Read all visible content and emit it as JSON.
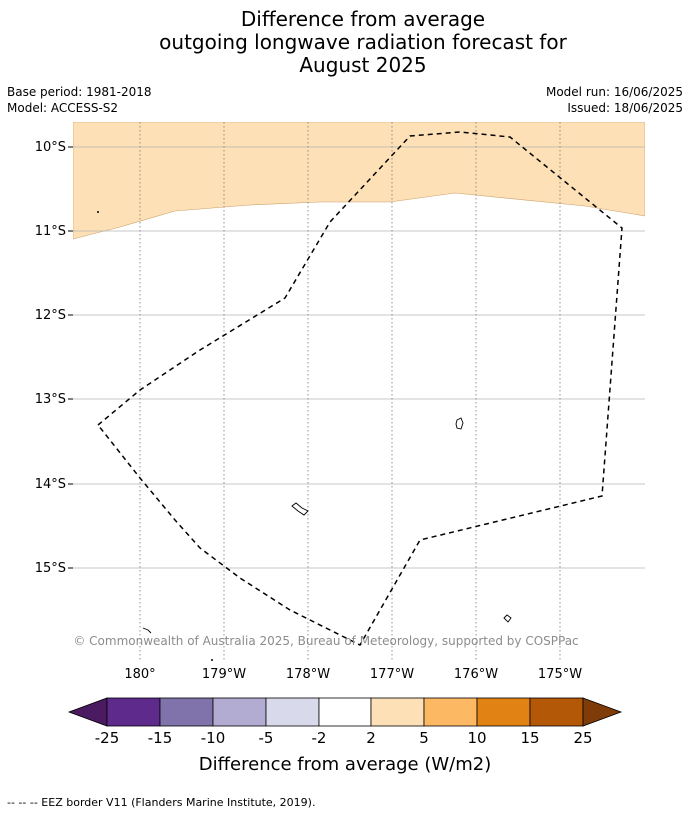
{
  "title": {
    "line1": "Difference from average",
    "line2": "outgoing longwave radiation forecast for",
    "line3": "August 2025"
  },
  "meta_left": {
    "base_period": "Base period: 1981-2018",
    "model": "Model: ACCESS-S2"
  },
  "meta_right": {
    "model_run": "Model run: 16/06/2025",
    "issued": "Issued: 18/06/2025"
  },
  "map": {
    "lat_labels": [
      "10°S",
      "11°S",
      "12°S",
      "13°S",
      "14°S",
      "15°S"
    ],
    "lon_labels": [
      "180°",
      "179°W",
      "178°W",
      "177°W",
      "176°W",
      "175°W"
    ],
    "copyright": "© Commonwealth of Australia 2025, Bureau of Meteorology, supported by COSPPac",
    "anomaly_fill_color": "#fee0b6",
    "anomaly_band_range": "2 to 5"
  },
  "colorbar": {
    "title": "Difference from average (W/m2)",
    "ticks": [
      "-25",
      "-15",
      "-10",
      "-5",
      "-2",
      "2",
      "5",
      "10",
      "15",
      "25"
    ],
    "colors": [
      "#4b1a61",
      "#5e2a8c",
      "#8073ac",
      "#b2abd2",
      "#d8daeb",
      "#ffffff",
      "#fee0b6",
      "#fdb863",
      "#e08214",
      "#b35806",
      "#7f3b08"
    ]
  },
  "footnote": "--  --  -- EEZ border V11 (Flanders Marine Institute, 2019)."
}
